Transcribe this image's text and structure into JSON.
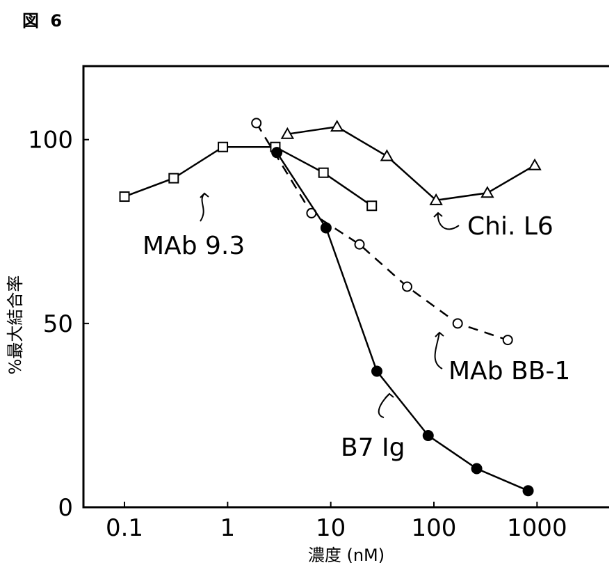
{
  "figure_label": "図 6",
  "chart_data": {
    "type": "line",
    "xlabel": "濃度 (nM)",
    "ylabel": "%最大結合率",
    "xscale": "log",
    "xlim": [
      0.04,
      5000
    ],
    "ylim": [
      0,
      120
    ],
    "xticks": [
      0.1,
      1,
      10,
      100,
      1000
    ],
    "xticklabels": [
      "0.1",
      "1",
      "10",
      "100",
      "1000"
    ],
    "yticks": [
      0,
      50,
      100
    ],
    "yticklabels": [
      "0",
      "50",
      "100"
    ],
    "grid": false,
    "series": [
      {
        "name": "MAb 9.3",
        "marker": "square-open",
        "linestyle": "solid",
        "x": [
          0.1,
          0.3,
          0.9,
          2.9,
          8.5,
          25
        ],
        "y": [
          84.5,
          89.5,
          98,
          98,
          91,
          82
        ]
      },
      {
        "name": "Chi. L6",
        "marker": "triangle-open",
        "linestyle": "solid",
        "x": [
          3.8,
          11.5,
          35,
          105,
          330,
          950
        ],
        "y": [
          101.5,
          103.5,
          95.5,
          83.5,
          85.5,
          93
        ]
      },
      {
        "name": "MAb BB-1",
        "marker": "circle-open",
        "linestyle": "dashed",
        "x": [
          1.9,
          6.5,
          19,
          55,
          170,
          520
        ],
        "y": [
          104.5,
          80,
          71.5,
          60,
          50,
          45.5
        ]
      },
      {
        "name": "B7 Ig",
        "marker": "circle-filled",
        "linestyle": "solid",
        "x": [
          3,
          9,
          28,
          88,
          260,
          820
        ],
        "y": [
          96.5,
          76,
          37,
          19.5,
          10.5,
          4.5
        ]
      }
    ]
  }
}
